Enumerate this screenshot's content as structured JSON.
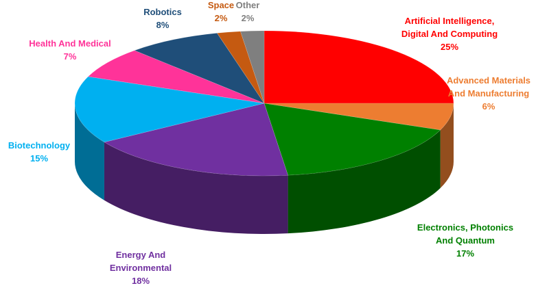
{
  "chart_data": {
    "type": "pie",
    "title": "",
    "legend": "none",
    "slices": [
      {
        "label_lines": [
          "Artificial Intelligence,",
          "Digital And Computing"
        ],
        "pct_label": "25%",
        "value": 25,
        "color": "#ff0000",
        "text_color": "#ff0000"
      },
      {
        "label_lines": [
          "Advanced Materials",
          "And Manufacturing"
        ],
        "pct_label": "6%",
        "value": 6,
        "color": "#ed7d31",
        "text_color": "#ed7d31"
      },
      {
        "label_lines": [
          "Electronics, Photonics",
          "And Quantum"
        ],
        "pct_label": "17%",
        "value": 17,
        "color": "#008000",
        "text_color": "#008000"
      },
      {
        "label_lines": [
          "Energy And",
          "Environmental"
        ],
        "pct_label": "18%",
        "value": 18,
        "color": "#7030a0",
        "text_color": "#7030a0"
      },
      {
        "label_lines": [
          "Biotechnology"
        ],
        "pct_label": "15%",
        "value": 15,
        "color": "#00b0f0",
        "text_color": "#00b0f0"
      },
      {
        "label_lines": [
          "Health And Medical"
        ],
        "pct_label": "7%",
        "value": 7,
        "color": "#ff3399",
        "text_color": "#ff3399"
      },
      {
        "label_lines": [
          "Robotics"
        ],
        "pct_label": "8%",
        "value": 8,
        "color": "#1f4e79",
        "text_color": "#1f4e79"
      },
      {
        "label_lines": [
          "Space"
        ],
        "pct_label": "2%",
        "value": 2,
        "color": "#c55a11",
        "text_color": "#c55a11"
      },
      {
        "label_lines": [
          "Other"
        ],
        "pct_label": "2%",
        "value": 2,
        "color": "#7f7f7f",
        "text_color": "#7f7f7f"
      }
    ]
  }
}
